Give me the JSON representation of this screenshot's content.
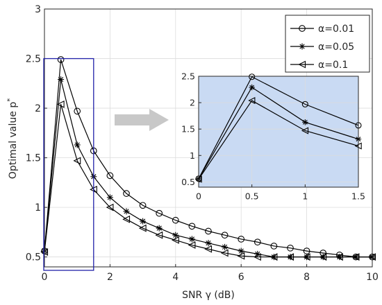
{
  "chart_data": [
    {
      "type": "line",
      "xlabel": "SNR γ (dB)",
      "ylabel": "Optimal value p",
      "ylabel_superscript": "*",
      "xlim": [
        0,
        10
      ],
      "ylim": [
        0.4,
        3
      ],
      "xticks": [
        0,
        2,
        4,
        6,
        8,
        10
      ],
      "yticks": [
        0.5,
        1,
        1.5,
        2,
        2.5,
        3
      ],
      "xtick_labels": [
        "0",
        "2",
        "4",
        "6",
        "8",
        "10"
      ],
      "ytick_labels": [
        "0.5",
        "1",
        "1.5",
        "2",
        "2.5",
        "3"
      ],
      "grid": true,
      "legend_position": "top-right",
      "x": [
        0,
        0.5,
        1,
        1.5,
        2,
        2.5,
        3,
        3.5,
        4,
        4.5,
        5,
        5.5,
        6,
        6.5,
        7,
        7.5,
        8,
        8.5,
        9,
        9.5,
        10
      ],
      "series": [
        {
          "name": "α=0.01",
          "marker": "circle",
          "values": [
            0.56,
            2.49,
            1.97,
            1.57,
            1.32,
            1.14,
            1.02,
            0.94,
            0.87,
            0.81,
            0.76,
            0.72,
            0.68,
            0.65,
            0.61,
            0.59,
            0.56,
            0.54,
            0.52,
            0.5,
            0.5
          ]
        },
        {
          "name": "α=0.05",
          "marker": "asterisk",
          "values": [
            0.56,
            2.29,
            1.63,
            1.31,
            1.1,
            0.96,
            0.86,
            0.79,
            0.72,
            0.68,
            0.64,
            0.6,
            0.56,
            0.53,
            0.5,
            0.5,
            0.5,
            0.5,
            0.5,
            0.5,
            0.5
          ]
        },
        {
          "name": "α=0.1",
          "marker": "triangle-left",
          "values": [
            0.55,
            2.04,
            1.47,
            1.18,
            1.0,
            0.88,
            0.79,
            0.72,
            0.67,
            0.62,
            0.58,
            0.54,
            0.51,
            0.5,
            0.5,
            0.5,
            0.5,
            0.5,
            0.5,
            0.5,
            0.5
          ]
        }
      ]
    },
    {
      "type": "line",
      "title": "",
      "xlim": [
        0,
        1.5
      ],
      "ylim": [
        0.4,
        2.5
      ],
      "xticks": [
        0,
        0.5,
        1,
        1.5
      ],
      "yticks": [
        0.5,
        1,
        1.5,
        2,
        2.5
      ],
      "xtick_labels": [
        "0",
        "0.5",
        "1",
        "1.5"
      ],
      "ytick_labels": [
        "0.5",
        "1",
        "1.5",
        "2",
        "2.5"
      ],
      "background": "#c9daf3",
      "x": [
        0,
        0.5,
        1,
        1.5
      ],
      "series": [
        {
          "name": "α=0.01",
          "marker": "circle",
          "values": [
            0.56,
            2.49,
            1.97,
            1.57
          ]
        },
        {
          "name": "α=0.05",
          "marker": "asterisk",
          "values": [
            0.56,
            2.29,
            1.63,
            1.31
          ]
        },
        {
          "name": "α=0.1",
          "marker": "triangle-left",
          "values": [
            0.55,
            2.04,
            1.47,
            1.18
          ]
        }
      ]
    }
  ],
  "colors": {
    "zoom_box": "#1f1fa8",
    "arrow": "#c8c8c8",
    "inset_background": "#c9daf3",
    "series": "#000000"
  }
}
